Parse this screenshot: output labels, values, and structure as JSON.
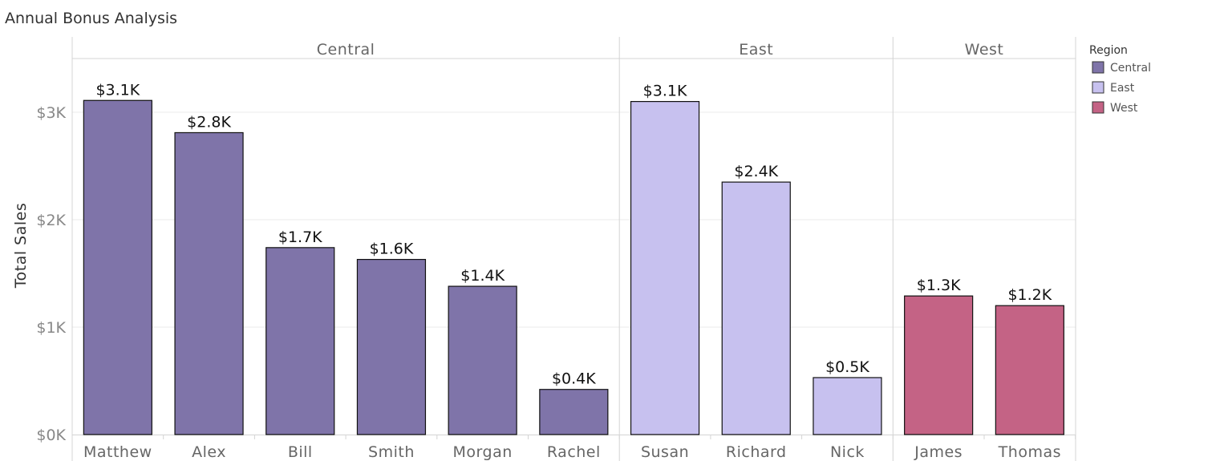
{
  "chart_data": {
    "type": "bar",
    "title": "Annual Bonus Analysis",
    "ylabel": "Total Sales",
    "xlabel": "",
    "ylim": [
      0,
      3500
    ],
    "y_ticks": [
      0,
      1000,
      2000,
      3000
    ],
    "y_tick_labels": [
      "$0K",
      "$1K",
      "$2K",
      "$3K"
    ],
    "grid": true,
    "legend": {
      "title": "Region",
      "position": "right",
      "entries": [
        {
          "name": "Central",
          "color": "#7f74a9"
        },
        {
          "name": "East",
          "color": "#c7c1ef"
        },
        {
          "name": "West",
          "color": "#c46385"
        }
      ]
    },
    "panes": [
      {
        "region": "Central",
        "color": "#7f74a9",
        "categories": [
          "Matthew",
          "Alex",
          "Bill",
          "Smith",
          "Morgan",
          "Rachel"
        ],
        "values": [
          3110,
          2810,
          1740,
          1630,
          1380,
          420
        ],
        "labels": [
          "$3.1K",
          "$2.8K",
          "$1.7K",
          "$1.6K",
          "$1.4K",
          "$0.4K"
        ]
      },
      {
        "region": "East",
        "color": "#c7c1ef",
        "categories": [
          "Susan",
          "Richard",
          "Nick"
        ],
        "values": [
          3100,
          2350,
          530
        ],
        "labels": [
          "$3.1K",
          "$2.4K",
          "$0.5K"
        ]
      },
      {
        "region": "West",
        "color": "#c46385",
        "categories": [
          "James",
          "Thomas"
        ],
        "values": [
          1290,
          1200
        ],
        "labels": [
          "$1.3K",
          "$1.2K"
        ]
      }
    ]
  }
}
